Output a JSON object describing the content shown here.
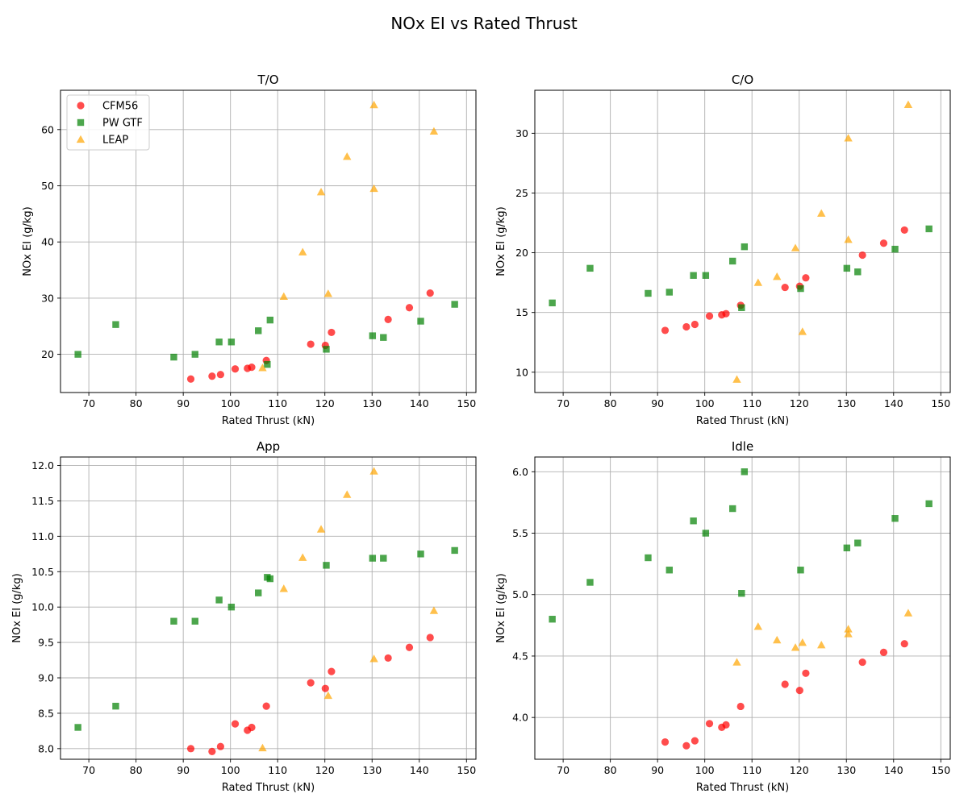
{
  "figure": {
    "title": "NOx EI vs Rated Thrust"
  },
  "colors": {
    "CFM56": "#ff0000",
    "PW GTF": "#008000",
    "LEAP": "#ffa500",
    "grid": "#b0b0b0"
  },
  "chart_data": [
    {
      "type": "scatter",
      "title": "T/O",
      "xlabel": "Rated Thrust (kN)",
      "ylabel": "NOx EI (g/kg)",
      "xlim": [
        64,
        152
      ],
      "ylim": [
        13.2,
        67
      ],
      "xticks": [
        70,
        80,
        90,
        100,
        110,
        120,
        130,
        140,
        150
      ],
      "yticks": [
        20,
        30,
        40,
        50,
        60
      ],
      "grid": true,
      "legend": "upper-left",
      "series": [
        {
          "name": "CFM56",
          "marker": "circle",
          "points": [
            [
              91.6,
              15.6
            ],
            [
              96.1,
              16.1
            ],
            [
              97.9,
              16.4
            ],
            [
              101,
              17.4
            ],
            [
              103.6,
              17.5
            ],
            [
              104.5,
              17.7
            ],
            [
              107.6,
              18.9
            ],
            [
              117,
              21.8
            ],
            [
              120.1,
              21.6
            ],
            [
              121.4,
              23.9
            ],
            [
              133.4,
              26.2
            ],
            [
              137.9,
              28.3
            ],
            [
              142.3,
              30.9
            ]
          ]
        },
        {
          "name": "PW GTF",
          "marker": "square",
          "points": [
            [
              67.7,
              20
            ],
            [
              75.7,
              25.3
            ],
            [
              88,
              19.5
            ],
            [
              92.5,
              20
            ],
            [
              97.6,
              22.2
            ],
            [
              100.2,
              22.2
            ],
            [
              105.9,
              24.2
            ],
            [
              107.8,
              18.2
            ],
            [
              108.4,
              26.1
            ],
            [
              120.3,
              20.9
            ],
            [
              130.1,
              23.3
            ],
            [
              132.4,
              23
            ],
            [
              140.3,
              25.9
            ],
            [
              147.5,
              28.9
            ]
          ]
        },
        {
          "name": "LEAP",
          "marker": "triangle",
          "points": [
            [
              106.8,
              17.6
            ],
            [
              111.3,
              30.3
            ],
            [
              115.3,
              38.2
            ],
            [
              119.2,
              48.9
            ],
            [
              120.7,
              30.8
            ],
            [
              124.7,
              55.2
            ],
            [
              130.4,
              49.5
            ],
            [
              130.4,
              64.4
            ],
            [
              143.1,
              59.7
            ]
          ]
        }
      ]
    },
    {
      "type": "scatter",
      "title": "C/O",
      "xlabel": "Rated Thrust (kN)",
      "ylabel": "NOx EI (g/kg)",
      "xlim": [
        64,
        152
      ],
      "ylim": [
        8.3,
        33.6
      ],
      "xticks": [
        70,
        80,
        90,
        100,
        110,
        120,
        130,
        140,
        150
      ],
      "yticks": [
        10,
        15,
        20,
        25,
        30
      ],
      "grid": true,
      "series": [
        {
          "name": "CFM56",
          "marker": "circle",
          "points": [
            [
              91.6,
              13.5
            ],
            [
              96.1,
              13.8
            ],
            [
              97.9,
              14
            ],
            [
              101,
              14.7
            ],
            [
              103.6,
              14.8
            ],
            [
              104.5,
              14.9
            ],
            [
              107.6,
              15.6
            ],
            [
              117,
              17.1
            ],
            [
              120.1,
              17.2
            ],
            [
              121.4,
              17.9
            ],
            [
              133.4,
              19.8
            ],
            [
              137.9,
              20.8
            ],
            [
              142.3,
              21.9
            ]
          ]
        },
        {
          "name": "PW GTF",
          "marker": "square",
          "points": [
            [
              67.7,
              15.8
            ],
            [
              75.7,
              18.7
            ],
            [
              88,
              16.6
            ],
            [
              92.5,
              16.7
            ],
            [
              97.6,
              18.1
            ],
            [
              100.2,
              18.1
            ],
            [
              105.9,
              19.3
            ],
            [
              107.8,
              15.4
            ],
            [
              108.4,
              20.5
            ],
            [
              120.3,
              17
            ],
            [
              130.1,
              18.7
            ],
            [
              132.4,
              18.4
            ],
            [
              140.3,
              20.3
            ],
            [
              147.5,
              22
            ]
          ]
        },
        {
          "name": "LEAP",
          "marker": "triangle",
          "points": [
            [
              106.8,
              9.4
            ],
            [
              111.3,
              17.5
            ],
            [
              115.3,
              18
            ],
            [
              119.2,
              20.4
            ],
            [
              120.7,
              13.4
            ],
            [
              124.7,
              23.3
            ],
            [
              130.4,
              21.1
            ],
            [
              130.4,
              29.6
            ],
            [
              143.1,
              32.4
            ]
          ]
        }
      ]
    },
    {
      "type": "scatter",
      "title": "App",
      "xlabel": "Rated Thrust (kN)",
      "ylabel": "NOx EI (g/kg)",
      "xlim": [
        64,
        152
      ],
      "ylim": [
        7.85,
        12.12
      ],
      "xticks": [
        70,
        80,
        90,
        100,
        110,
        120,
        130,
        140,
        150
      ],
      "yticks": [
        8.0,
        8.5,
        9.0,
        9.5,
        10.0,
        10.5,
        11.0,
        11.5,
        12.0
      ],
      "ytick_labels": [
        "8.0",
        "8.5",
        "9.0",
        "9.5",
        "10.0",
        "10.5",
        "11.0",
        "11.5",
        "12.0"
      ],
      "grid": true,
      "series": [
        {
          "name": "CFM56",
          "marker": "circle",
          "points": [
            [
              91.6,
              8
            ],
            [
              96.1,
              7.96
            ],
            [
              97.9,
              8.03
            ],
            [
              101,
              8.35
            ],
            [
              103.6,
              8.26
            ],
            [
              104.5,
              8.3
            ],
            [
              107.6,
              8.6
            ],
            [
              117,
              8.93
            ],
            [
              120.1,
              8.85
            ],
            [
              121.4,
              9.09
            ],
            [
              133.4,
              9.28
            ],
            [
              137.9,
              9.43
            ],
            [
              142.3,
              9.57
            ]
          ]
        },
        {
          "name": "PW GTF",
          "marker": "square",
          "points": [
            [
              67.7,
              8.3
            ],
            [
              75.7,
              8.6
            ],
            [
              88,
              9.8
            ],
            [
              92.5,
              9.8
            ],
            [
              97.6,
              10.1
            ],
            [
              100.2,
              10
            ],
            [
              105.9,
              10.2
            ],
            [
              107.8,
              10.42
            ],
            [
              108.4,
              10.4
            ],
            [
              120.3,
              10.59
            ],
            [
              130.1,
              10.69
            ],
            [
              132.4,
              10.69
            ],
            [
              140.3,
              10.75
            ],
            [
              147.5,
              10.8
            ]
          ]
        },
        {
          "name": "LEAP",
          "marker": "triangle",
          "points": [
            [
              106.8,
              8.01
            ],
            [
              111.3,
              10.26
            ],
            [
              115.3,
              10.7
            ],
            [
              119.2,
              11.1
            ],
            [
              120.7,
              8.75
            ],
            [
              124.7,
              11.59
            ],
            [
              130.4,
              9.27
            ],
            [
              130.4,
              11.92
            ],
            [
              143.1,
              9.95
            ]
          ]
        }
      ]
    },
    {
      "type": "scatter",
      "title": "Idle",
      "xlabel": "Rated Thrust (kN)",
      "ylabel": "NOx EI (g/kg)",
      "xlim": [
        64,
        152
      ],
      "ylim": [
        3.66,
        6.12
      ],
      "xticks": [
        70,
        80,
        90,
        100,
        110,
        120,
        130,
        140,
        150
      ],
      "yticks": [
        4.0,
        4.5,
        5.0,
        5.5,
        6.0
      ],
      "ytick_labels": [
        "4.0",
        "4.5",
        "5.0",
        "5.5",
        "6.0"
      ],
      "grid": true,
      "series": [
        {
          "name": "CFM56",
          "marker": "circle",
          "points": [
            [
              91.6,
              3.8
            ],
            [
              96.1,
              3.77
            ],
            [
              97.9,
              3.81
            ],
            [
              101,
              3.95
            ],
            [
              103.6,
              3.92
            ],
            [
              104.5,
              3.94
            ],
            [
              107.6,
              4.09
            ],
            [
              117,
              4.27
            ],
            [
              120.1,
              4.22
            ],
            [
              121.4,
              4.36
            ],
            [
              133.4,
              4.45
            ],
            [
              137.9,
              4.53
            ],
            [
              142.3,
              4.6
            ]
          ]
        },
        {
          "name": "PW GTF",
          "marker": "square",
          "points": [
            [
              67.7,
              4.8
            ],
            [
              75.7,
              5.1
            ],
            [
              88,
              5.3
            ],
            [
              92.5,
              5.2
            ],
            [
              97.6,
              5.6
            ],
            [
              100.2,
              5.5
            ],
            [
              105.9,
              5.7
            ],
            [
              107.8,
              5.01
            ],
            [
              108.4,
              6
            ],
            [
              120.3,
              5.2
            ],
            [
              130.1,
              5.38
            ],
            [
              132.4,
              5.42
            ],
            [
              140.3,
              5.62
            ],
            [
              147.5,
              5.74
            ]
          ]
        },
        {
          "name": "LEAP",
          "marker": "triangle",
          "points": [
            [
              106.8,
              4.45
            ],
            [
              111.3,
              4.74
            ],
            [
              115.3,
              4.63
            ],
            [
              119.2,
              4.57
            ],
            [
              120.7,
              4.61
            ],
            [
              124.7,
              4.59
            ],
            [
              130.4,
              4.68
            ],
            [
              130.4,
              4.72
            ],
            [
              143.1,
              4.85
            ]
          ]
        }
      ]
    }
  ]
}
